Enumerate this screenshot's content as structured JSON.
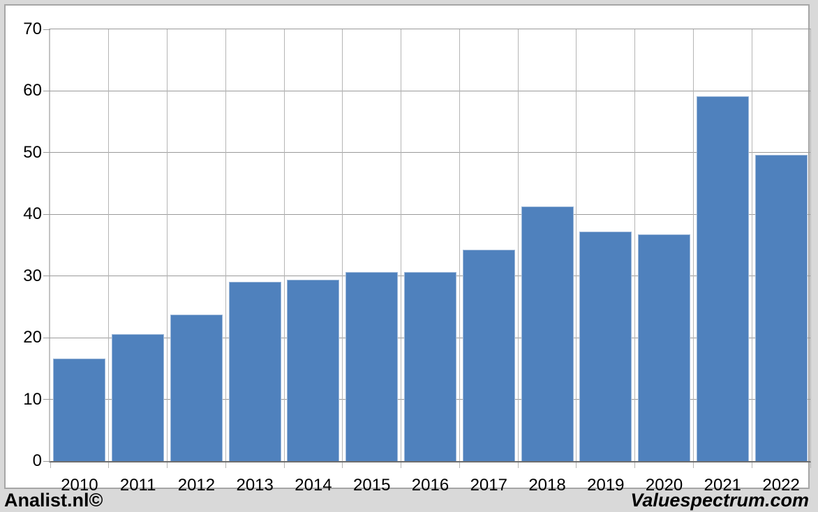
{
  "footer": {
    "left_text": "Analist.nl©",
    "right_text": "Valuespectrum.com"
  },
  "colors": {
    "bar_fill": "#4f81bd",
    "bar_border": "#9db8d9",
    "page_background": "#d9d9d9",
    "card_background": "#ffffff",
    "card_border": "#a6a6a6",
    "h_gridline": "#9a9a9a",
    "v_gridline": "#b5b5b5",
    "x_axis_line": "#6e6e6e",
    "y_axis_line": "#c3c3c3",
    "label_text": "#000000"
  },
  "chart_data": {
    "type": "bar",
    "title": "",
    "categories": [
      "2010",
      "2011",
      "2012",
      "2013",
      "2014",
      "2015",
      "2016",
      "2017",
      "2018",
      "2019",
      "2020",
      "2021",
      "2022"
    ],
    "values": [
      16.6,
      20.6,
      23.7,
      29.1,
      29.4,
      30.6,
      30.7,
      34.3,
      41.3,
      37.2,
      36.8,
      59.2,
      49.6
    ],
    "xlabel": "",
    "ylabel": "",
    "ylim": [
      0,
      70
    ],
    "yticks": [
      0,
      10,
      20,
      30,
      40,
      50,
      60,
      70
    ],
    "grid": true,
    "legend_position": "none"
  }
}
